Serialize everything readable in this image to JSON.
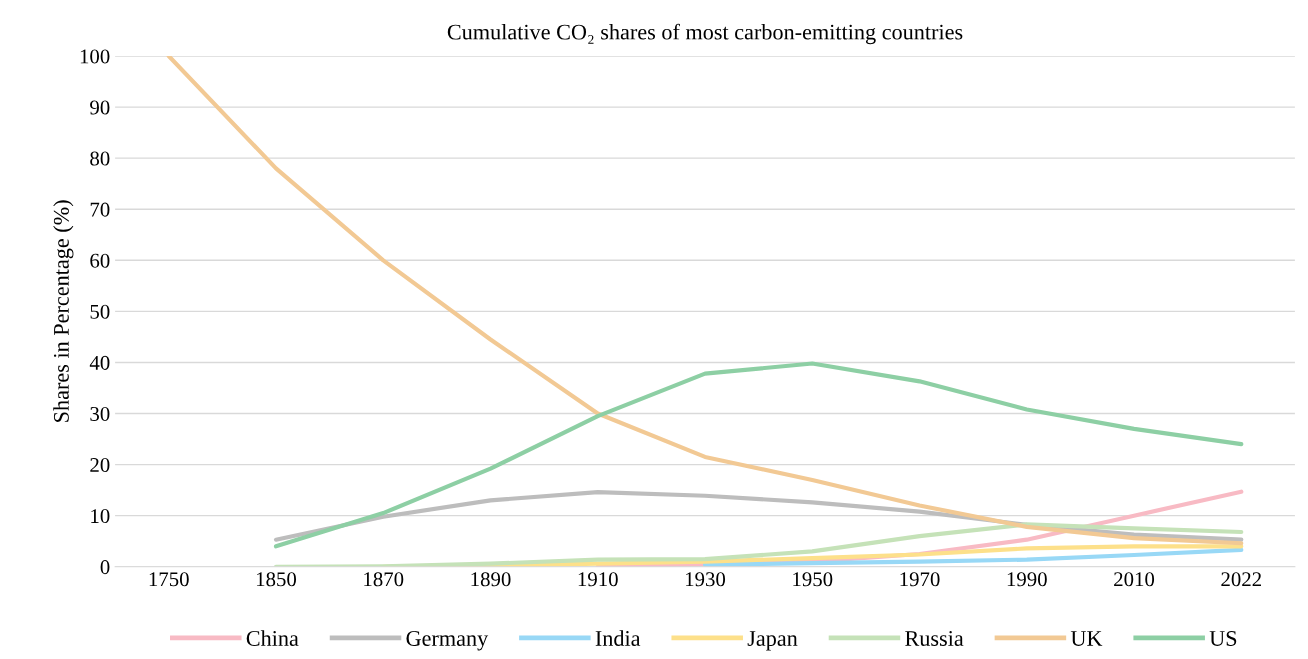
{
  "chart_data": {
    "type": "line",
    "title": "Cumulative CO₂ shares of most carbon-emitting countries",
    "ylabel": "Shares in Percentage (%)",
    "categories": [
      "1750",
      "1850",
      "1870",
      "1890",
      "1910",
      "1930",
      "1950",
      "1970",
      "1990",
      "2010",
      "2022"
    ],
    "series": [
      {
        "name": "China",
        "color": "#f8bac4",
        "values": [
          null,
          null,
          null,
          null,
          0,
          0.5,
          1,
          2.5,
          5.3,
          10,
          14.7
        ]
      },
      {
        "name": "Germany",
        "color": "#bdbdbd",
        "values": [
          null,
          5.3,
          9.8,
          13,
          14.6,
          13.9,
          12.6,
          10.8,
          8.2,
          6.3,
          5.3
        ]
      },
      {
        "name": "India",
        "color": "#98d8f6",
        "values": [
          null,
          null,
          null,
          null,
          null,
          0.4,
          0.7,
          1,
          1.4,
          2.3,
          3.3
        ]
      },
      {
        "name": "Japan",
        "color": "#fde08a",
        "values": [
          null,
          null,
          0,
          0.2,
          0.6,
          1,
          1.7,
          2.4,
          3.6,
          4,
          4
        ]
      },
      {
        "name": "Russia",
        "color": "#c5e2b8",
        "values": [
          null,
          0,
          0.1,
          0.6,
          1.4,
          1.5,
          3,
          6,
          8.3,
          7.5,
          6.8
        ]
      },
      {
        "name": "UK",
        "color": "#f2c994",
        "values": [
          100,
          78,
          60,
          44.5,
          30,
          21.5,
          17,
          12,
          7.8,
          5.6,
          4.6
        ]
      },
      {
        "name": "US",
        "color": "#8dcfa4",
        "values": [
          null,
          4,
          10.5,
          19.2,
          29.5,
          37.8,
          39.8,
          36.3,
          30.8,
          27,
          24
        ]
      }
    ],
    "ylim": [
      0,
      100
    ],
    "yticks": [
      0,
      10,
      20,
      30,
      40,
      50,
      60,
      70,
      80,
      90,
      100
    ],
    "grid": "y",
    "legend": "bottom",
    "marker": "none",
    "line_style": "solid"
  }
}
